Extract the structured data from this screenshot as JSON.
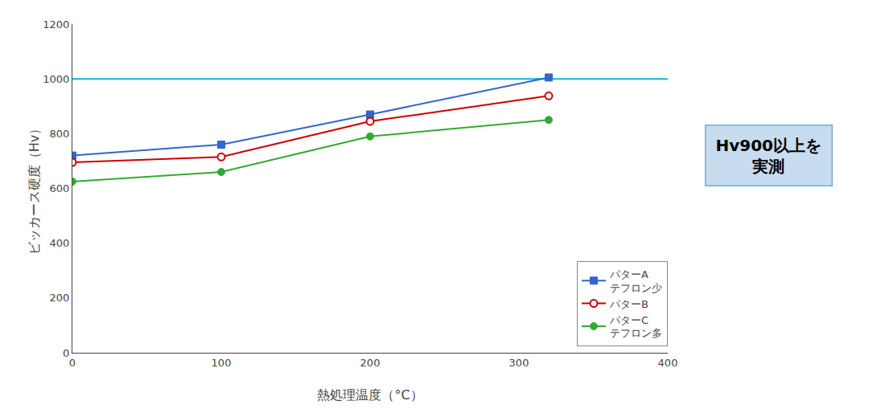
{
  "chart_data": {
    "type": "line",
    "x": [
      0,
      100,
      200,
      320
    ],
    "series": [
      {
        "name": "パターA\nテフロン少",
        "color": "#3366CC",
        "marker": "square",
        "values": [
          720,
          760,
          870,
          1005
        ]
      },
      {
        "name": "パターB",
        "color": "#CC0000",
        "marker": "open circle",
        "values": [
          695,
          715,
          845,
          938
        ]
      },
      {
        "name": "パターC\nテフロン多",
        "color": "#33AA33",
        "marker": "circle",
        "values": [
          625,
          660,
          790,
          850
        ]
      }
    ],
    "xlabel": "熱処理温度（°C）",
    "ylabel": "ビッカース硬度（Hv）",
    "xlim": [
      0,
      400
    ],
    "ylim": [
      0,
      1200
    ],
    "xticks": [
      0,
      100,
      200,
      300,
      400
    ],
    "yticks": [
      0,
      200,
      400,
      600,
      800,
      1000,
      1200
    ],
    "grid": false,
    "legend": "lower right",
    "hline": {
      "y": 1000,
      "color": "#00BBDD"
    },
    "annotations": [
      {
        "text": "Hv900以上を\n実測",
        "color": "#C8DCF0",
        "border_color": "#7AAAD0"
      }
    ]
  }
}
